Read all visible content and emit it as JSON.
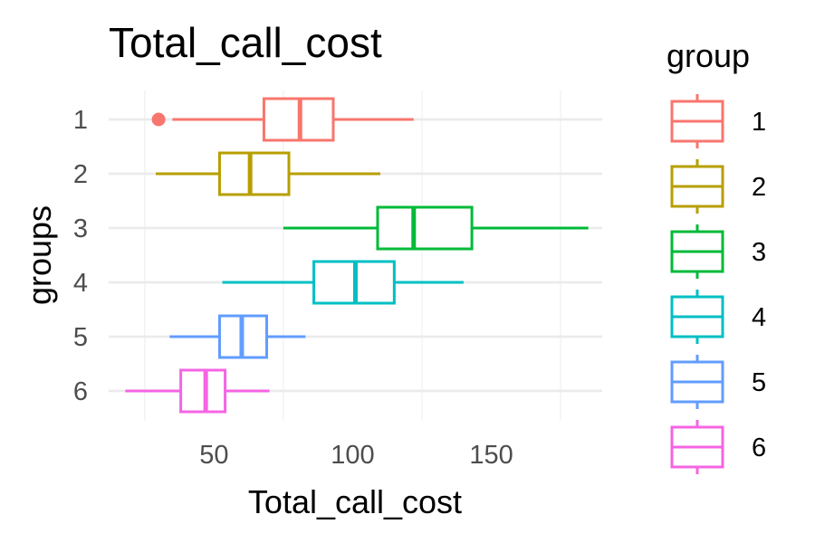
{
  "chart_data": {
    "type": "boxplot",
    "orientation": "horizontal",
    "title": "Total_call_cost",
    "xlabel": "Total_call_cost",
    "ylabel": "groups",
    "xlim": [
      12,
      190
    ],
    "xticks": [
      50,
      100,
      150
    ],
    "categories": [
      "1",
      "2",
      "3",
      "4",
      "5",
      "6"
    ],
    "legend": {
      "title": "group",
      "position": "right",
      "entries": [
        "1",
        "2",
        "3",
        "4",
        "5",
        "6"
      ]
    },
    "grid": true,
    "series": [
      {
        "group": "1",
        "color": "#F8766D",
        "min": 35,
        "q1": 68,
        "median": 81,
        "q3": 93,
        "max": 122,
        "outliers": [
          30
        ]
      },
      {
        "group": "2",
        "color": "#B79F00",
        "min": 29,
        "q1": 52,
        "median": 63,
        "q3": 77,
        "max": 110,
        "outliers": []
      },
      {
        "group": "3",
        "color": "#00BA38",
        "min": 75,
        "q1": 109,
        "median": 122,
        "q3": 143,
        "max": 185,
        "outliers": []
      },
      {
        "group": "4",
        "color": "#00BFC4",
        "min": 53,
        "q1": 86,
        "median": 101,
        "q3": 115,
        "max": 140,
        "outliers": []
      },
      {
        "group": "5",
        "color": "#619CFF",
        "min": 34,
        "q1": 52,
        "median": 60,
        "q3": 69,
        "max": 83,
        "outliers": []
      },
      {
        "group": "6",
        "color": "#F564E3",
        "min": 18,
        "q1": 38,
        "median": 47,
        "q3": 54,
        "max": 70,
        "outliers": []
      }
    ]
  }
}
